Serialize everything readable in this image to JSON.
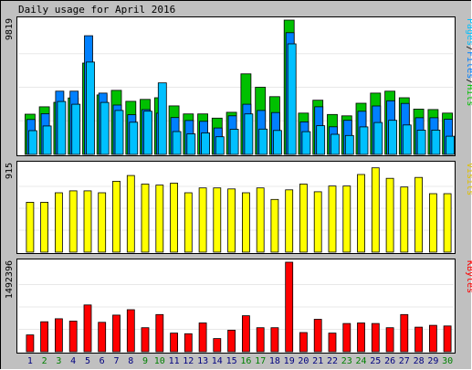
{
  "chart_data": {
    "type": "bar",
    "title": "Daily usage for April 2016",
    "categories": [
      "1",
      "2",
      "3",
      "4",
      "5",
      "6",
      "7",
      "8",
      "9",
      "10",
      "11",
      "12",
      "13",
      "14",
      "15",
      "16",
      "17",
      "18",
      "19",
      "20",
      "21",
      "22",
      "23",
      "24",
      "25",
      "26",
      "27",
      "28",
      "29",
      "30"
    ],
    "weekend_days": [
      "2",
      "3",
      "9",
      "10",
      "16",
      "17",
      "23",
      "24",
      "30"
    ],
    "colors": {
      "hits": "#00c000",
      "files": "#0080ff",
      "pages": "#00c0ff",
      "visits": "#ffff00",
      "kbytes": "#ff0000",
      "weekend_label": "#008000",
      "weekday_label": "#000080",
      "frame_bg": "#c0c0c0"
    },
    "panels": [
      {
        "name": "hits-files-pages",
        "ylabel": "Pages/Files/Hits",
        "ymax_label": "9819",
        "ylim": [
          0,
          9819
        ],
        "series": [
          {
            "name": "Hits",
            "values": [
              2940,
              3480,
              3810,
              4130,
              6680,
              4350,
              4680,
              3880,
              4020,
              4140,
              3550,
              2960,
              2960,
              2650,
              3080,
              5890,
              4910,
              4220,
              9819,
              3020,
              3960,
              2920,
              2820,
              3740,
              4480,
              4620,
              4140,
              3310,
              3280,
              3020
            ]
          },
          {
            "name": "Files",
            "values": [
              2550,
              2980,
              4620,
              4620,
              8680,
              4480,
              3610,
              2900,
              3270,
              3010,
              2690,
              2480,
              2420,
              1930,
              2820,
              3670,
              3210,
              3060,
              8900,
              2380,
              3480,
              2020,
              2490,
              3150,
              3540,
              3920,
              3730,
              2680,
              2680,
              2570
            ]
          },
          {
            "name": "Pages",
            "values": [
              1740,
              2080,
              3870,
              3670,
              6750,
              3800,
              3210,
              2350,
              3160,
              5230,
              1670,
              1500,
              1570,
              1290,
              1840,
              2960,
              1850,
              1750,
              8080,
              1660,
              2100,
              1470,
              1380,
              2010,
              2330,
              2490,
              2150,
              1770,
              1780,
              1330
            ]
          }
        ]
      },
      {
        "name": "visits",
        "ylabel": "Visits",
        "ymax_label": "915",
        "ylim": [
          0,
          915
        ],
        "series": [
          {
            "name": "Visits",
            "values": [
              520,
              520,
              620,
              640,
              640,
              620,
              740,
              800,
              710,
              700,
              720,
              620,
              670,
              670,
              660,
              620,
              670,
              550,
              650,
              710,
              630,
              690,
              690,
              810,
              880,
              770,
              680,
              780,
              610,
              610
            ]
          }
        ]
      },
      {
        "name": "kbytes",
        "ylabel": "KBytes",
        "ymax_label": "1492396",
        "ylim": [
          0,
          1492396
        ],
        "series": [
          {
            "name": "KBytes",
            "values": [
              280000,
              500000,
              550000,
              510000,
              780000,
              490000,
              610000,
              700000,
              400000,
              620000,
              310000,
              300000,
              480000,
              220000,
              360000,
              600000,
              400000,
              400000,
              1492396,
              320000,
              540000,
              310000,
              470000,
              480000,
              470000,
              400000,
              620000,
              410000,
              440000,
              430000
            ]
          }
        ]
      }
    ]
  }
}
